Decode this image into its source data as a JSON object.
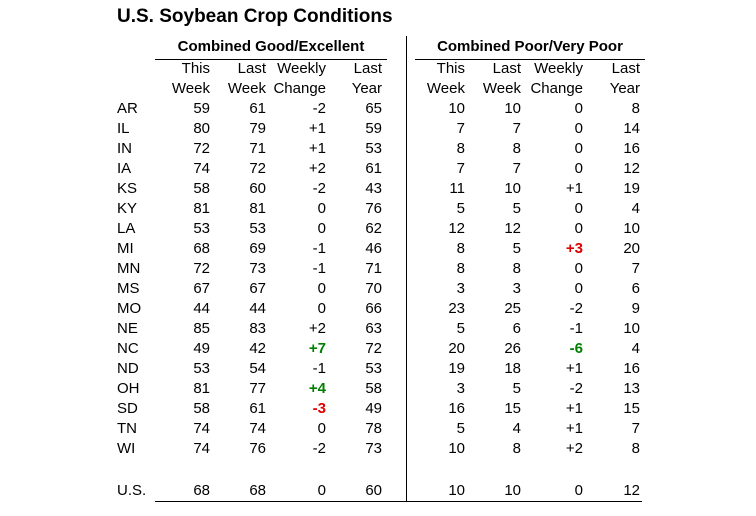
{
  "title": "U.S. Soybean Crop Conditions",
  "groups": {
    "good": "Combined Good/Excellent",
    "poor": "Combined Poor/Very Poor"
  },
  "columns": [
    {
      "line1": "This",
      "line2": "Week"
    },
    {
      "line1": "Last",
      "line2": "Week"
    },
    {
      "line1": "Weekly",
      "line2": "Change"
    },
    {
      "line1": "Last",
      "line2": "Year"
    }
  ],
  "colors": {
    "increase": "#008000",
    "decrease": "#e00000"
  },
  "rows": [
    {
      "state": "AR",
      "ge": [
        "59",
        "61",
        "-2",
        "65"
      ],
      "pvp": [
        "10",
        "10",
        "0",
        "8"
      ]
    },
    {
      "state": "IL",
      "ge": [
        "80",
        "79",
        "+1",
        "59"
      ],
      "pvp": [
        "7",
        "7",
        "0",
        "14"
      ]
    },
    {
      "state": "IN",
      "ge": [
        "72",
        "71",
        "+1",
        "53"
      ],
      "pvp": [
        "8",
        "8",
        "0",
        "16"
      ]
    },
    {
      "state": "IA",
      "ge": [
        "74",
        "72",
        "+2",
        "61"
      ],
      "pvp": [
        "7",
        "7",
        "0",
        "12"
      ]
    },
    {
      "state": "KS",
      "ge": [
        "58",
        "60",
        "-2",
        "43"
      ],
      "pvp": [
        "11",
        "10",
        "+1",
        "19"
      ]
    },
    {
      "state": "KY",
      "ge": [
        "81",
        "81",
        "0",
        "76"
      ],
      "pvp": [
        "5",
        "5",
        "0",
        "4"
      ]
    },
    {
      "state": "LA",
      "ge": [
        "53",
        "53",
        "0",
        "62"
      ],
      "pvp": [
        "12",
        "12",
        "0",
        "10"
      ]
    },
    {
      "state": "MI",
      "ge": [
        "68",
        "69",
        "-1",
        "46"
      ],
      "pvp": [
        "8",
        "5",
        "+3",
        "20"
      ],
      "pvp_hl": "down"
    },
    {
      "state": "MN",
      "ge": [
        "72",
        "73",
        "-1",
        "71"
      ],
      "pvp": [
        "8",
        "8",
        "0",
        "7"
      ]
    },
    {
      "state": "MS",
      "ge": [
        "67",
        "67",
        "0",
        "70"
      ],
      "pvp": [
        "3",
        "3",
        "0",
        "6"
      ]
    },
    {
      "state": "MO",
      "ge": [
        "44",
        "44",
        "0",
        "66"
      ],
      "pvp": [
        "23",
        "25",
        "-2",
        "9"
      ]
    },
    {
      "state": "NE",
      "ge": [
        "85",
        "83",
        "+2",
        "63"
      ],
      "pvp": [
        "5",
        "6",
        "-1",
        "10"
      ]
    },
    {
      "state": "NC",
      "ge": [
        "49",
        "42",
        "+7",
        "72"
      ],
      "pvp": [
        "20",
        "26",
        "-6",
        "4"
      ],
      "ge_hl": "up",
      "pvp_hl": "up"
    },
    {
      "state": "ND",
      "ge": [
        "53",
        "54",
        "-1",
        "53"
      ],
      "pvp": [
        "19",
        "18",
        "+1",
        "16"
      ]
    },
    {
      "state": "OH",
      "ge": [
        "81",
        "77",
        "+4",
        "58"
      ],
      "pvp": [
        "3",
        "5",
        "-2",
        "13"
      ],
      "ge_hl": "up"
    },
    {
      "state": "SD",
      "ge": [
        "58",
        "61",
        "-3",
        "49"
      ],
      "pvp": [
        "16",
        "15",
        "+1",
        "15"
      ],
      "ge_hl": "down"
    },
    {
      "state": "TN",
      "ge": [
        "74",
        "74",
        "0",
        "78"
      ],
      "pvp": [
        "5",
        "4",
        "+1",
        "7"
      ]
    },
    {
      "state": "WI",
      "ge": [
        "74",
        "76",
        "-2",
        "73"
      ],
      "pvp": [
        "10",
        "8",
        "+2",
        "8"
      ]
    }
  ],
  "total": {
    "state": "U.S.",
    "ge": [
      "68",
      "68",
      "0",
      "60"
    ],
    "pvp": [
      "10",
      "10",
      "0",
      "12"
    ]
  }
}
